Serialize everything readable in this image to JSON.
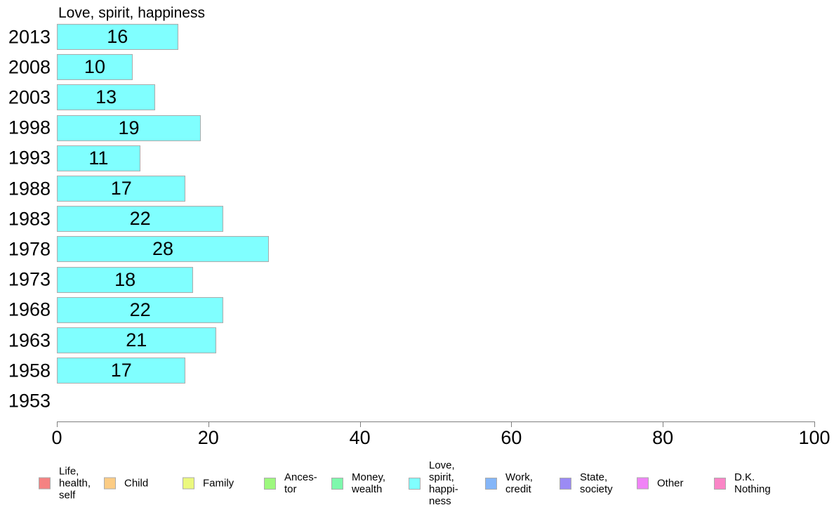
{
  "chart_data": {
    "type": "bar",
    "orientation": "horizontal",
    "title": "Love, spirit, happiness",
    "categories": [
      "2013",
      "2008",
      "2003",
      "1998",
      "1993",
      "1988",
      "1983",
      "1978",
      "1973",
      "1968",
      "1963",
      "1958",
      "1953"
    ],
    "values": [
      16,
      10,
      13,
      19,
      11,
      17,
      22,
      28,
      18,
      22,
      21,
      17,
      null
    ],
    "xlabel": "",
    "ylabel": "",
    "xlim": [
      0,
      100
    ],
    "xticks": [
      0,
      20,
      40,
      60,
      80,
      100
    ],
    "grid": false,
    "bar_color": "#80FFFF",
    "bar_border_color": "#ABABAB",
    "legend_position": "bottom",
    "legend": [
      {
        "label": "Life,\nhealth,\nself",
        "color": "#F58282"
      },
      {
        "label": "Child",
        "color": "#FCCC84"
      },
      {
        "label": "Family",
        "color": "#EBF87E"
      },
      {
        "label": "Ances-\ntor",
        "color": "#9DF87E"
      },
      {
        "label": "Money,\nwealth",
        "color": "#7EF8AC"
      },
      {
        "label": "Love,\nspirit,\nhappi-\nness",
        "color": "#80FFFF"
      },
      {
        "label": "Work,\ncredit",
        "color": "#85B6F8"
      },
      {
        "label": "State,\nsociety",
        "color": "#9B8BF4"
      },
      {
        "label": "Other",
        "color": "#F083F6"
      },
      {
        "label": "D.K.\nNothing",
        "color": "#FA85C6"
      }
    ]
  }
}
